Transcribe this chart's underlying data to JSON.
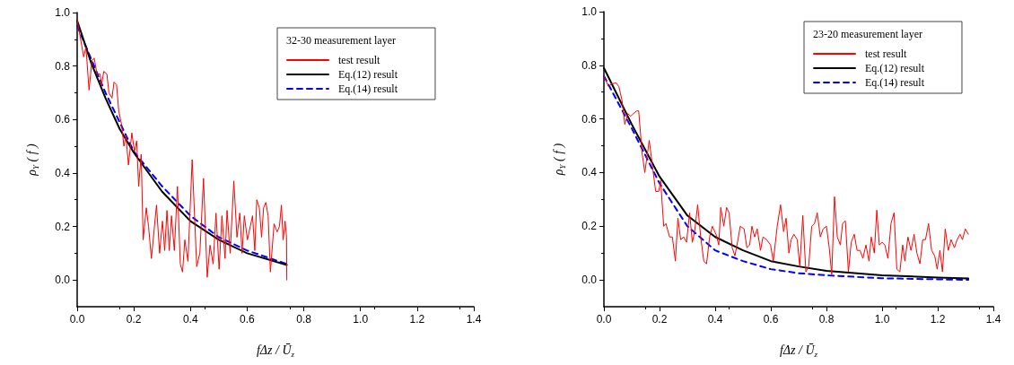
{
  "chart_data": [
    {
      "type": "line",
      "xlabel": "fΔz / Ū$_{z}$",
      "ylabel": "ρ$_{Y}$ ( f )",
      "legend_title": "32-30 measurement layer",
      "legend": "top right",
      "grid": false,
      "marker": "none",
      "xlim": [
        0,
        1.4
      ],
      "xticks": [
        {
          "value": 0,
          "label": "0.0"
        },
        {
          "value": 0.2,
          "label": "0.2"
        },
        {
          "value": 0.4,
          "label": "0.4"
        },
        {
          "value": 0.6,
          "label": "0.6"
        },
        {
          "value": 0.8,
          "label": "0.8"
        },
        {
          "value": 1.0,
          "label": "1.0"
        },
        {
          "value": 1.2,
          "label": "1.2"
        },
        {
          "value": 1.4,
          "label": "1.4"
        }
      ],
      "ylim": [
        -0.1,
        1.0
      ],
      "yticks": [
        {
          "value": 0,
          "label": "0.0"
        },
        {
          "value": 0.2,
          "label": "0.2"
        },
        {
          "value": 0.4,
          "label": "0.4"
        },
        {
          "value": 0.6,
          "label": "0.6"
        },
        {
          "value": 0.8,
          "label": "0.8"
        },
        {
          "value": 1.0,
          "label": "1.0"
        }
      ],
      "series": [
        {
          "name": "test result",
          "color": "#ff0000",
          "line_style": "solid",
          "x": [
            0,
            0.023,
            0.031,
            0.042,
            0.052,
            0.06,
            0.07,
            0.081,
            0.086,
            0.094,
            0.105,
            0.112,
            0.123,
            0.13,
            0.139,
            0.147,
            0.157,
            0.165,
            0.172,
            0.181,
            0.193,
            0.202,
            0.21,
            0.217,
            0.226,
            0.233,
            0.244,
            0.252,
            0.262,
            0.28,
            0.291,
            0.301,
            0.309,
            0.317,
            0.325,
            0.333,
            0.343,
            0.354,
            0.364,
            0.372,
            0.38,
            0.391,
            0.406,
            0.422,
            0.433,
            0.446,
            0.459,
            0.469,
            0.48,
            0.49,
            0.501,
            0.511,
            0.522,
            0.529,
            0.54,
            0.553,
            0.564,
            0.574,
            0.582,
            0.59,
            0.601,
            0.619,
            0.627,
            0.634,
            0.643,
            0.651,
            0.658,
            0.666,
            0.674,
            0.682,
            0.695,
            0.706,
            0.714,
            0.721,
            0.727,
            0.734,
            0.739,
            0.74
          ],
          "values": [
            0.974,
            0.834,
            0.87,
            0.71,
            0.82,
            0.83,
            0.77,
            0.77,
            0.73,
            0.78,
            0.77,
            0.7,
            0.68,
            0.74,
            0.73,
            0.63,
            0.58,
            0.5,
            0.54,
            0.43,
            0.55,
            0.48,
            0.52,
            0.35,
            0.47,
            0.15,
            0.27,
            0.2,
            0.08,
            0.28,
            0.1,
            0.22,
            0.11,
            0.26,
            0.11,
            0.24,
            0.11,
            0.35,
            0.06,
            0.03,
            0.15,
            0.07,
            0.45,
            0.05,
            0.1,
            0.38,
            0.01,
            0.13,
            0.06,
            0.25,
            0.04,
            0.24,
            0.08,
            0.26,
            0.1,
            0.37,
            0.16,
            0.25,
            0.1,
            0.24,
            0.15,
            0.24,
            0.11,
            0.3,
            0.27,
            0.16,
            0.27,
            0.29,
            0.24,
            0.03,
            0.21,
            0.18,
            0.2,
            0.28,
            0.15,
            0.22,
            0.16,
            0.0
          ]
        },
        {
          "name": "Eq.(12) result",
          "color": "#000000",
          "line_style": "solid",
          "x": [
            0,
            0.05,
            0.1,
            0.15,
            0.2,
            0.3,
            0.4,
            0.5,
            0.6,
            0.74
          ],
          "values": [
            0.97,
            0.81,
            0.68,
            0.565,
            0.476,
            0.33,
            0.22,
            0.15,
            0.1,
            0.056
          ]
        },
        {
          "name": "Eq.(14) result",
          "color": "#0000ff",
          "line_style": "dashed",
          "x": [
            0,
            0.1,
            0.2,
            0.3,
            0.4,
            0.5,
            0.6,
            0.74
          ],
          "values": [
            0.95,
            0.7,
            0.48,
            0.35,
            0.24,
            0.16,
            0.11,
            0.06
          ]
        }
      ]
    },
    {
      "type": "line",
      "xlabel": "fΔz / Ū$_{z}$",
      "ylabel": "ρ$_{Y}$ ( f )",
      "legend_title": "23-20 measurement layer",
      "legend": "top right",
      "grid": false,
      "marker": "none",
      "xlim": [
        0,
        1.4
      ],
      "xticks": [
        {
          "value": 0,
          "label": "0.0"
        },
        {
          "value": 0.2,
          "label": "0.2"
        },
        {
          "value": 0.4,
          "label": "0.4"
        },
        {
          "value": 0.6,
          "label": "0.6"
        },
        {
          "value": 0.8,
          "label": "0.8"
        },
        {
          "value": 1.0,
          "label": "1.0"
        },
        {
          "value": 1.2,
          "label": "1.2"
        },
        {
          "value": 1.4,
          "label": "1.4"
        }
      ],
      "ylim": [
        -0.1,
        1.0
      ],
      "yticks": [
        {
          "value": 0,
          "label": "0.0"
        },
        {
          "value": 0.2,
          "label": "0.2"
        },
        {
          "value": 0.4,
          "label": "0.4"
        },
        {
          "value": 0.6,
          "label": "0.6"
        },
        {
          "value": 0.8,
          "label": "0.8"
        },
        {
          "value": 1.0,
          "label": "1.0"
        }
      ],
      "series": [
        {
          "name": "test result",
          "color": "#ff0000",
          "line_style": "solid",
          "x": [
            0,
            0.017,
            0.027,
            0.044,
            0.054,
            0.065,
            0.075,
            0.086,
            0.096,
            0.106,
            0.118,
            0.125,
            0.137,
            0.147,
            0.163,
            0.175,
            0.186,
            0.197,
            0.204,
            0.215,
            0.223,
            0.236,
            0.246,
            0.257,
            0.266,
            0.276,
            0.287,
            0.297,
            0.308,
            0.318,
            0.326,
            0.337,
            0.348,
            0.359,
            0.369,
            0.38,
            0.39,
            0.403,
            0.413,
            0.42,
            0.431,
            0.441,
            0.45,
            0.461,
            0.471,
            0.482,
            0.49,
            0.504,
            0.514,
            0.524,
            0.532,
            0.542,
            0.551,
            0.563,
            0.572,
            0.585,
            0.599,
            0.609,
            0.623,
            0.635,
            0.646,
            0.655,
            0.665,
            0.673,
            0.683,
            0.695,
            0.704,
            0.715,
            0.726,
            0.736,
            0.747,
            0.757,
            0.767,
            0.778,
            0.788,
            0.8,
            0.81,
            0.819,
            0.829,
            0.839,
            0.85,
            0.858,
            0.868,
            0.879,
            0.889,
            0.9,
            0.91,
            0.921,
            0.931,
            0.942,
            0.953,
            0.961,
            0.972,
            0.981,
            0.99,
            1.0,
            1.01,
            1.021,
            1.032,
            1.043,
            1.053,
            1.064,
            1.074,
            1.082,
            1.093,
            1.104,
            1.115,
            1.125,
            1.136,
            1.146,
            1.156,
            1.167,
            1.178,
            1.189,
            1.198,
            1.208,
            1.217,
            1.227,
            1.238,
            1.248,
            1.26,
            1.27,
            1.28,
            1.289,
            1.299,
            1.31
          ],
          "values": [
            0.76,
            0.72,
            0.73,
            0.735,
            0.72,
            0.67,
            0.58,
            0.62,
            0.61,
            0.62,
            0.63,
            0.63,
            0.475,
            0.4,
            0.52,
            0.42,
            0.33,
            0.33,
            0.37,
            0.2,
            0.21,
            0.16,
            0.16,
            0.07,
            0.23,
            0.15,
            0.16,
            0.14,
            0.25,
            0.14,
            0.18,
            0.28,
            0.16,
            0.07,
            0.06,
            0.16,
            0.2,
            0.17,
            0.13,
            0.27,
            0.2,
            0.27,
            0.25,
            0.12,
            0.09,
            0.15,
            0.2,
            0.19,
            0.12,
            0.13,
            0.2,
            0.16,
            0.19,
            0.11,
            0.16,
            0.15,
            0.13,
            0.07,
            0.2,
            0.28,
            0.18,
            0.23,
            0.1,
            0.15,
            0.17,
            0.15,
            0.05,
            0.24,
            0.03,
            0.05,
            0.2,
            0.21,
            0.25,
            0.16,
            0.19,
            0.2,
            0.12,
            0.02,
            0.31,
            0.16,
            0.13,
            0.21,
            0.22,
            0.03,
            0.14,
            0.17,
            0.11,
            0.11,
            0.08,
            0.13,
            0.07,
            0.16,
            0.1,
            0.26,
            0.13,
            0.14,
            0.13,
            0.08,
            0.21,
            0.25,
            0.04,
            0.03,
            0.13,
            0.07,
            0.16,
            0.11,
            0.17,
            0.1,
            0.06,
            0.15,
            0.15,
            0.21,
            0.11,
            0.09,
            0.04,
            0.11,
            0.03,
            0.19,
            0.11,
            0.15,
            0.12,
            0.15,
            0.17,
            0.15,
            0.19,
            0.17
          ]
        },
        {
          "name": "Eq.(12) result",
          "color": "#000000",
          "line_style": "solid",
          "x": [
            0,
            0.1,
            0.2,
            0.3,
            0.4,
            0.5,
            0.6,
            0.7,
            0.8,
            1.0,
            1.2,
            1.31
          ],
          "values": [
            0.79,
            0.58,
            0.385,
            0.24,
            0.16,
            0.11,
            0.07,
            0.05,
            0.034,
            0.017,
            0.009,
            0.005
          ]
        },
        {
          "name": "Eq.(14) result",
          "color": "#0000ff",
          "line_style": "dashed",
          "x": [
            0,
            0.1,
            0.2,
            0.3,
            0.4,
            0.5,
            0.6,
            0.7,
            0.8,
            1.0,
            1.31
          ],
          "values": [
            0.76,
            0.565,
            0.36,
            0.2,
            0.11,
            0.07,
            0.04,
            0.025,
            0.017,
            0.006,
            0.0
          ]
        }
      ]
    }
  ]
}
